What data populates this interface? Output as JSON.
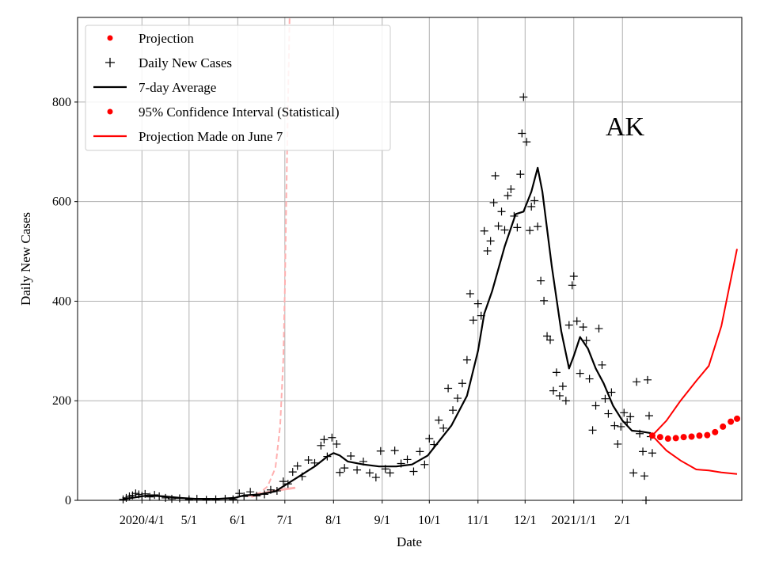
{
  "chart_data": {
    "type": "line",
    "annotation": "AK",
    "xlabel": "Date",
    "ylabel": "Daily New Cases",
    "grid": true,
    "legend_position": "top-left",
    "xlim": [
      "2020-02-20",
      "2021-04-18"
    ],
    "ylim": [
      0,
      970
    ],
    "x_ticks": [
      {
        "date": "2020-04-01",
        "label": "2020/4/1"
      },
      {
        "date": "2020-05-01",
        "label": "5/1"
      },
      {
        "date": "2020-06-01",
        "label": "6/1"
      },
      {
        "date": "2020-07-01",
        "label": "7/1"
      },
      {
        "date": "2020-08-01",
        "label": "8/1"
      },
      {
        "date": "2020-09-01",
        "label": "9/1"
      },
      {
        "date": "2020-10-01",
        "label": "10/1"
      },
      {
        "date": "2020-11-01",
        "label": "11/1"
      },
      {
        "date": "2020-12-01",
        "label": "12/1"
      },
      {
        "date": "2021-01-01",
        "label": "2021/1/1"
      },
      {
        "date": "2021-02-01",
        "label": "2/1"
      }
    ],
    "y_ticks": [
      0,
      200,
      400,
      600,
      800
    ],
    "legend": [
      {
        "label": "Projection",
        "marker": "dot",
        "color": "#ff0000"
      },
      {
        "label": "Daily New Cases",
        "marker": "plus",
        "color": "#000000"
      },
      {
        "label": "7-day Average",
        "marker": "line",
        "color": "#000000"
      },
      {
        "label": "95% Confidence Interval (Statistical)",
        "marker": "dot",
        "color": "#ff0000"
      },
      {
        "label": "Projection Made on June 7",
        "marker": "line",
        "color": "#ff0000"
      }
    ],
    "series": [
      {
        "name": "7-day Average",
        "style": "line",
        "color": "#000000",
        "points": [
          [
            "2020-03-20",
            2
          ],
          [
            "2020-03-28",
            6
          ],
          [
            "2020-04-05",
            10
          ],
          [
            "2020-04-15",
            8
          ],
          [
            "2020-04-25",
            5
          ],
          [
            "2020-05-05",
            3
          ],
          [
            "2020-05-20",
            3
          ],
          [
            "2020-05-30",
            5
          ],
          [
            "2020-06-05",
            10
          ],
          [
            "2020-06-15",
            12
          ],
          [
            "2020-06-25",
            18
          ],
          [
            "2020-07-01",
            30
          ],
          [
            "2020-07-10",
            48
          ],
          [
            "2020-07-20",
            68
          ],
          [
            "2020-07-28",
            88
          ],
          [
            "2020-08-01",
            95
          ],
          [
            "2020-08-05",
            90
          ],
          [
            "2020-08-10",
            78
          ],
          [
            "2020-08-20",
            72
          ],
          [
            "2020-08-30",
            68
          ],
          [
            "2020-09-10",
            68
          ],
          [
            "2020-09-20",
            72
          ],
          [
            "2020-09-30",
            90
          ],
          [
            "2020-10-05",
            110
          ],
          [
            "2020-10-15",
            150
          ],
          [
            "2020-10-25",
            210
          ],
          [
            "2020-11-01",
            300
          ],
          [
            "2020-11-05",
            375
          ],
          [
            "2020-11-10",
            420
          ],
          [
            "2020-11-18",
            510
          ],
          [
            "2020-11-25",
            575
          ],
          [
            "2020-11-30",
            580
          ],
          [
            "2020-12-05",
            620
          ],
          [
            "2020-12-09",
            668
          ],
          [
            "2020-12-12",
            620
          ],
          [
            "2020-12-18",
            470
          ],
          [
            "2020-12-24",
            340
          ],
          [
            "2020-12-29",
            265
          ],
          [
            "2021-01-01",
            290
          ],
          [
            "2021-01-05",
            328
          ],
          [
            "2021-01-10",
            305
          ],
          [
            "2021-01-15",
            265
          ],
          [
            "2021-01-20",
            235
          ],
          [
            "2021-01-26",
            190
          ],
          [
            "2021-02-01",
            160
          ],
          [
            "2021-02-07",
            140
          ],
          [
            "2021-02-13",
            138
          ],
          [
            "2021-02-19",
            135
          ]
        ]
      },
      {
        "name": "Daily New Cases",
        "style": "plus",
        "color": "#000000",
        "points": [
          [
            "2020-03-20",
            2
          ],
          [
            "2020-03-22",
            5
          ],
          [
            "2020-03-24",
            8
          ],
          [
            "2020-03-26",
            10
          ],
          [
            "2020-03-28",
            14
          ],
          [
            "2020-03-30",
            12
          ],
          [
            "2020-04-01",
            9
          ],
          [
            "2020-04-03",
            13
          ],
          [
            "2020-04-06",
            7
          ],
          [
            "2020-04-09",
            11
          ],
          [
            "2020-04-12",
            8
          ],
          [
            "2020-04-16",
            5
          ],
          [
            "2020-04-20",
            3
          ],
          [
            "2020-04-25",
            4
          ],
          [
            "2020-05-01",
            2
          ],
          [
            "2020-05-06",
            3
          ],
          [
            "2020-05-12",
            1
          ],
          [
            "2020-05-18",
            2
          ],
          [
            "2020-05-24",
            3
          ],
          [
            "2020-05-29",
            2
          ],
          [
            "2020-06-02",
            14
          ],
          [
            "2020-06-05",
            8
          ],
          [
            "2020-06-09",
            17
          ],
          [
            "2020-06-13",
            9
          ],
          [
            "2020-06-18",
            12
          ],
          [
            "2020-06-22",
            21
          ],
          [
            "2020-06-26",
            19
          ],
          [
            "2020-06-30",
            38
          ],
          [
            "2020-07-03",
            33
          ],
          [
            "2020-07-06",
            57
          ],
          [
            "2020-07-09",
            69
          ],
          [
            "2020-07-12",
            48
          ],
          [
            "2020-07-16",
            81
          ],
          [
            "2020-07-20",
            75
          ],
          [
            "2020-07-24",
            110
          ],
          [
            "2020-07-26",
            122
          ],
          [
            "2020-07-28",
            88
          ],
          [
            "2020-07-31",
            126
          ],
          [
            "2020-08-03",
            113
          ],
          [
            "2020-08-05",
            56
          ],
          [
            "2020-08-08",
            65
          ],
          [
            "2020-08-12",
            89
          ],
          [
            "2020-08-16",
            61
          ],
          [
            "2020-08-20",
            78
          ],
          [
            "2020-08-24",
            55
          ],
          [
            "2020-08-28",
            46
          ],
          [
            "2020-08-31",
            99
          ],
          [
            "2020-09-03",
            63
          ],
          [
            "2020-09-06",
            55
          ],
          [
            "2020-09-09",
            100
          ],
          [
            "2020-09-13",
            74
          ],
          [
            "2020-09-17",
            82
          ],
          [
            "2020-09-21",
            58
          ],
          [
            "2020-09-25",
            98
          ],
          [
            "2020-09-28",
            72
          ],
          [
            "2020-10-01",
            124
          ],
          [
            "2020-10-04",
            112
          ],
          [
            "2020-10-07",
            161
          ],
          [
            "2020-10-10",
            145
          ],
          [
            "2020-10-13",
            225
          ],
          [
            "2020-10-16",
            181
          ],
          [
            "2020-10-19",
            205
          ],
          [
            "2020-10-22",
            235
          ],
          [
            "2020-10-25",
            282
          ],
          [
            "2020-10-27",
            415
          ],
          [
            "2020-10-29",
            362
          ],
          [
            "2020-11-01",
            395
          ],
          [
            "2020-11-03",
            371
          ],
          [
            "2020-11-05",
            541
          ],
          [
            "2020-11-07",
            501
          ],
          [
            "2020-11-09",
            521
          ],
          [
            "2020-11-11",
            598
          ],
          [
            "2020-11-12",
            652
          ],
          [
            "2020-11-14",
            551
          ],
          [
            "2020-11-16",
            580
          ],
          [
            "2020-11-18",
            543
          ],
          [
            "2020-11-20",
            612
          ],
          [
            "2020-11-22",
            625
          ],
          [
            "2020-11-24",
            571
          ],
          [
            "2020-11-26",
            548
          ],
          [
            "2020-11-28",
            655
          ],
          [
            "2020-11-29",
            737
          ],
          [
            "2020-11-30",
            810
          ],
          [
            "2020-12-02",
            720
          ],
          [
            "2020-12-04",
            542
          ],
          [
            "2020-12-05",
            590
          ],
          [
            "2020-12-07",
            602
          ],
          [
            "2020-12-09",
            550
          ],
          [
            "2020-12-11",
            441
          ],
          [
            "2020-12-13",
            401
          ],
          [
            "2020-12-15",
            330
          ],
          [
            "2020-12-17",
            322
          ],
          [
            "2020-12-19",
            220
          ],
          [
            "2020-12-21",
            257
          ],
          [
            "2020-12-23",
            210
          ],
          [
            "2020-12-25",
            229
          ],
          [
            "2020-12-27",
            200
          ],
          [
            "2020-12-29",
            352
          ],
          [
            "2020-12-31",
            432
          ],
          [
            "2021-01-01",
            450
          ],
          [
            "2021-01-03",
            360
          ],
          [
            "2021-01-05",
            255
          ],
          [
            "2021-01-07",
            348
          ],
          [
            "2021-01-09",
            321
          ],
          [
            "2021-01-11",
            244
          ],
          [
            "2021-01-13",
            141
          ],
          [
            "2021-01-15",
            190
          ],
          [
            "2021-01-17",
            345
          ],
          [
            "2021-01-19",
            272
          ],
          [
            "2021-01-21",
            204
          ],
          [
            "2021-01-23",
            174
          ],
          [
            "2021-01-25",
            217
          ],
          [
            "2021-01-27",
            150
          ],
          [
            "2021-01-29",
            113
          ],
          [
            "2021-01-31",
            148
          ],
          [
            "2021-02-02",
            176
          ],
          [
            "2021-02-04",
            157
          ],
          [
            "2021-02-06",
            168
          ],
          [
            "2021-02-08",
            55
          ],
          [
            "2021-02-10",
            238
          ],
          [
            "2021-02-12",
            134
          ],
          [
            "2021-02-14",
            98
          ],
          [
            "2021-02-15",
            49
          ],
          [
            "2021-02-16",
            0
          ],
          [
            "2021-02-17",
            242
          ],
          [
            "2021-02-18",
            170
          ],
          [
            "2021-02-19",
            128
          ],
          [
            "2021-02-20",
            95
          ]
        ]
      },
      {
        "name": "Projection",
        "style": "dot",
        "color": "#ff0000",
        "points": [
          [
            "2021-02-20",
            130
          ],
          [
            "2021-02-25",
            127
          ],
          [
            "2021-03-02",
            124
          ],
          [
            "2021-03-07",
            125
          ],
          [
            "2021-03-12",
            127
          ],
          [
            "2021-03-17",
            128
          ],
          [
            "2021-03-22",
            130
          ],
          [
            "2021-03-27",
            131
          ],
          [
            "2021-04-01",
            137
          ],
          [
            "2021-04-06",
            148
          ],
          [
            "2021-04-11",
            158
          ],
          [
            "2021-04-15",
            164
          ]
        ]
      },
      {
        "name": "95% Confidence Interval (Statistical)",
        "style": "line",
        "color": "#ff0000",
        "upper": [
          [
            "2021-02-20",
            130
          ],
          [
            "2021-03-01",
            160
          ],
          [
            "2021-03-10",
            200
          ],
          [
            "2021-03-20",
            240
          ],
          [
            "2021-03-28",
            270
          ],
          [
            "2021-04-05",
            350
          ],
          [
            "2021-04-15",
            505
          ]
        ],
        "lower": [
          [
            "2021-02-20",
            130
          ],
          [
            "2021-03-01",
            100
          ],
          [
            "2021-03-10",
            80
          ],
          [
            "2021-03-20",
            62
          ],
          [
            "2021-03-28",
            60
          ],
          [
            "2021-04-05",
            56
          ],
          [
            "2021-04-15",
            53
          ]
        ]
      },
      {
        "name": "Projection Made on June 7",
        "style": "dashed",
        "color": "#ffb0b0",
        "points": [
          [
            "2020-06-07",
            8
          ],
          [
            "2020-06-15",
            15
          ],
          [
            "2020-06-20",
            28
          ],
          [
            "2020-06-25",
            65
          ],
          [
            "2020-06-28",
            150
          ],
          [
            "2020-06-30",
            280
          ],
          [
            "2020-07-01",
            420
          ],
          [
            "2020-07-02",
            620
          ],
          [
            "2020-07-03",
            800
          ],
          [
            "2020-07-04",
            970
          ]
        ],
        "band": [
          [
            "2020-06-10",
            8
          ],
          [
            "2020-06-20",
            16
          ],
          [
            "2020-06-30",
            22
          ],
          [
            "2020-07-07",
            25
          ]
        ]
      }
    ]
  }
}
